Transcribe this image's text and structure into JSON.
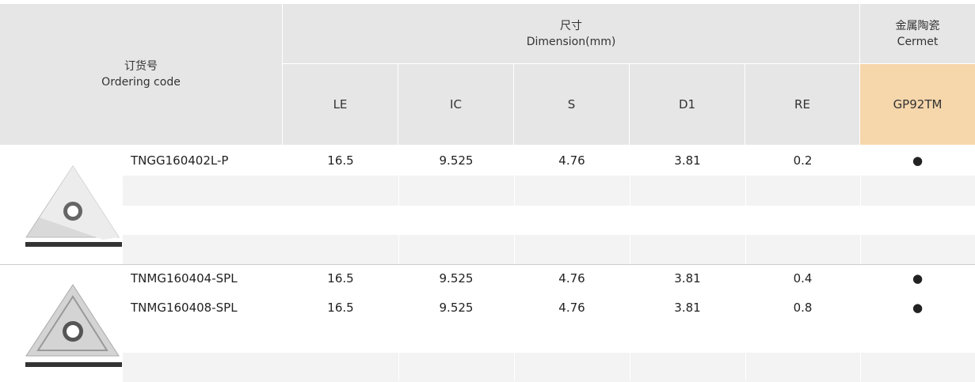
{
  "header": {
    "ordering_code": {
      "zh": "订货号",
      "en": "Ordering code"
    },
    "dimension": {
      "zh": "尺寸",
      "en": "Dimension(mm)"
    },
    "cermet": {
      "zh": "金属陶瓷",
      "en": "Cermet"
    },
    "columns": [
      "LE",
      "IC",
      "S",
      "D1",
      "RE"
    ],
    "grade": "GP92TM"
  },
  "groups": [
    {
      "rows": [
        {
          "code": "TNGG160402L-P",
          "values": [
            16.5,
            9.525,
            4.76,
            3.81,
            0.2
          ],
          "stock": "●"
        }
      ]
    },
    {
      "rows": [
        {
          "code": "TNMG160404-SPL",
          "values": [
            16.5,
            9.525,
            4.76,
            3.81,
            0.4
          ],
          "stock": "●"
        },
        {
          "code": "TNMG160408-SPL",
          "values": [
            16.5,
            9.525,
            4.76,
            3.81,
            0.8
          ],
          "stock": "●"
        }
      ]
    }
  ]
}
